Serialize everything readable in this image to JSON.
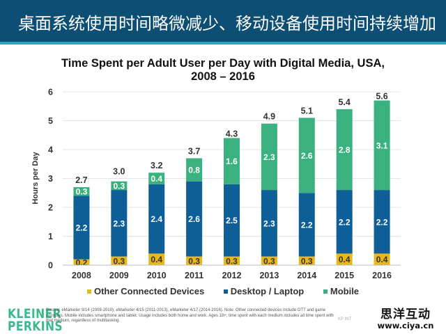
{
  "header": {
    "title": "桌面系统使用时间略微减少、移动设备使用时间持续增加"
  },
  "chart_data": {
    "type": "bar",
    "stacked": true,
    "title": "Time Spent per Adult User per Day with Digital Media, USA,",
    "title_line2": "2008 – 2016",
    "xlabel": "",
    "ylabel": "Hours per Day",
    "ylim": [
      0,
      6
    ],
    "yticks": [
      "0",
      "1",
      "2",
      "3",
      "4",
      "5",
      "6"
    ],
    "grid": true,
    "legend_position": "bottom",
    "categories": [
      "2008",
      "2009",
      "2010",
      "2011",
      "2012",
      "2013",
      "2014",
      "2015",
      "2016"
    ],
    "series": [
      {
        "name": "Other Connected Devices",
        "color": "#e8b71a",
        "label_color": "#333333",
        "values": [
          0.2,
          0.3,
          0.4,
          0.3,
          0.3,
          0.3,
          0.3,
          0.4,
          0.4
        ]
      },
      {
        "name": "Desktop / Laptop",
        "color": "#0e5f97",
        "label_color": "#ffffff",
        "values": [
          2.2,
          2.3,
          2.4,
          2.6,
          2.5,
          2.3,
          2.2,
          2.2,
          2.2
        ]
      },
      {
        "name": "Mobile",
        "color": "#3bb17f",
        "label_color": "#ffffff",
        "values": [
          0.3,
          0.3,
          0.4,
          0.8,
          1.6,
          2.3,
          2.6,
          2.8,
          3.1
        ]
      }
    ],
    "totals": [
      "2.7",
      "3.0",
      "3.2",
      "3.7",
      "4.3",
      "4.9",
      "5.1",
      "5.4",
      "5.6"
    ],
    "total_values": [
      2.7,
      3.0,
      3.2,
      3.7,
      4.3,
      4.9,
      5.1,
      5.4,
      5.6
    ]
  },
  "legend": {
    "items": [
      {
        "label": "Other Connected Devices",
        "color": "#e8b71a"
      },
      {
        "label": "Desktop / Laptop",
        "color": "#0e5f97"
      },
      {
        "label": "Mobile",
        "color": "#3bb17f"
      }
    ]
  },
  "footer": {
    "logo_line1": "KLEINER",
    "logo_line2": "PERKINS",
    "source": "Source: eMarketer 9/14 (2008-2010), eMarketer 4/15 (2011-2013), eMarketer 4/17 (2014-2016). Note: Other connected devices include OTT and game consoles. Mobile includes smartphone and tablet. Usage includes both home and work. Ages 18+; time spent with each medium includes all time spent with that medium, regardless of multitasking.",
    "kp_int": "KP INT",
    "watermark_cn": "思洋互动",
    "watermark_url": "www.ciya.cn"
  },
  "colors": {
    "header_bg": "#0d4e74",
    "header_stripe": "#2aa6c0",
    "brand_green": "#3cb98b"
  }
}
